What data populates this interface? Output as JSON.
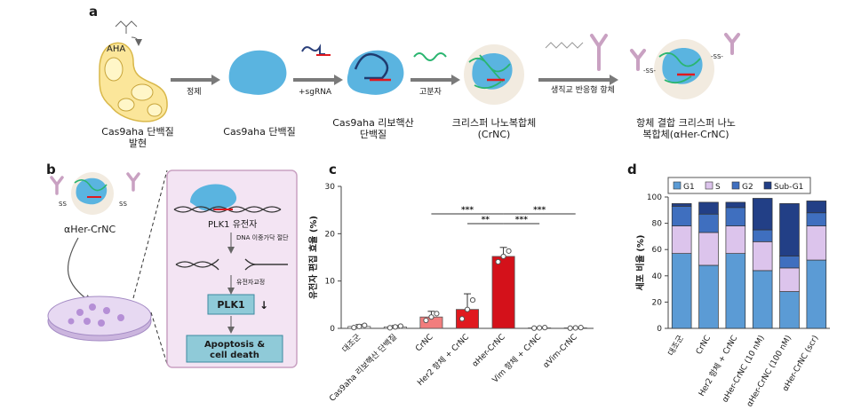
{
  "panel_a": {
    "letter": "a",
    "aha_label": "AHA",
    "steps": [
      {
        "line1": "Cas9aha 단백질",
        "line2": "발현"
      },
      {
        "line1": "Cas9aha 단백질",
        "line2": ""
      },
      {
        "line1": "Cas9aha 리보핵산",
        "line2": "단백질"
      },
      {
        "line1": "크리스퍼 나노복합체",
        "line2": "(CrNC)"
      },
      {
        "line1": "항체 결합 크리스퍼 나노",
        "line2": "복합체(αHer-CrNC)"
      }
    ],
    "arrows": [
      "정제",
      "+sgRNA",
      "고분자",
      "생직교 반응형 항체"
    ]
  },
  "panel_b": {
    "letter": "b",
    "complex_label": "αHer-CrNC",
    "gene_label": "PLK1 유전자",
    "cut_label": "DNA 이중가닥 절단",
    "edit_label": "유전자교정",
    "protein_label": "PLK1",
    "outcome_line1": "Apoptosis &",
    "outcome_line2": "cell death",
    "ss_labels": [
      "SS",
      "SS"
    ]
  },
  "chart_data": [
    {
      "type": "bar",
      "panel": "c",
      "ylabel": "유전자 편집 효율 (%)",
      "ylim": [
        0,
        30
      ],
      "yticks": [
        "0",
        "10",
        "20",
        "30"
      ],
      "categories": [
        "대조군",
        "Cas9aha 리보핵산 단백질",
        "CrNC",
        "Her2 항체 + CrNC",
        "αHer-CrNC",
        "Vim 항체 + CrNC",
        "αVim-CrNC"
      ],
      "values": [
        0.4,
        0.3,
        2.4,
        4.0,
        15.2,
        0.1,
        0.1
      ],
      "errors": [
        0.4,
        0.3,
        1.2,
        3.3,
        1.9,
        0.1,
        0.1
      ],
      "colors": [
        "#ffffff",
        "#ffffff",
        "#f27d7d",
        "#e0191f",
        "#d4111a",
        "#ffffff",
        "#ffffff"
      ],
      "significance": [
        "***",
        "**",
        "***",
        "***"
      ]
    },
    {
      "type": "bar",
      "stacked": true,
      "panel": "d",
      "ylabel": "세포 비율 (%)",
      "ylim": [
        0,
        100
      ],
      "yticks": [
        "0",
        "20",
        "40",
        "60",
        "80",
        "100"
      ],
      "legend_position": "top",
      "categories": [
        "대조군",
        "CrNC",
        "Her2 항체 + CrNC",
        "αHer-CrNC (10 nM)",
        "αHer-CrNC (100 nM)",
        "αHer-CrNC (scr)"
      ],
      "series": [
        {
          "name": "G1",
          "color": "#5b9bd5",
          "values": [
            57,
            48,
            57,
            44,
            28,
            52
          ]
        },
        {
          "name": "S",
          "color": "#dcc4ec",
          "values": [
            21,
            25,
            21,
            22,
            18,
            26
          ]
        },
        {
          "name": "G2",
          "color": "#3f6fbf",
          "values": [
            15,
            14,
            14,
            9,
            9,
            10
          ]
        },
        {
          "name": "Sub-G1",
          "color": "#223f86",
          "values": [
            2,
            9,
            4,
            24,
            40,
            9
          ]
        }
      ]
    }
  ]
}
